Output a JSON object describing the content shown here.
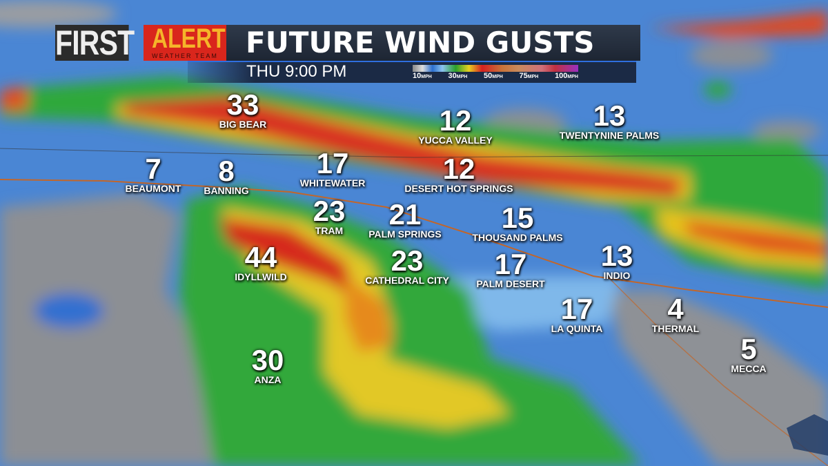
{
  "header": {
    "logo_first": "FIRST",
    "logo_alert": "ALERT",
    "logo_team": "WEATHER TEAM",
    "title": "FUTURE WIND GUSTS",
    "time": "THU 9:00 PM"
  },
  "legend": {
    "unit": "MPH",
    "stops": [
      "10",
      "30",
      "50",
      "75",
      "100"
    ],
    "colors": [
      "#888888",
      "#2b6fd0",
      "#2aa02a",
      "#e8d020",
      "#d62020",
      "#c9733a",
      "#d0707a",
      "#9a30c0"
    ]
  },
  "locations": [
    {
      "name": "BIG BEAR",
      "gust": "33"
    },
    {
      "name": "YUCCA VALLEY",
      "gust": "12"
    },
    {
      "name": "TWENTYNINE PALMS",
      "gust": "13"
    },
    {
      "name": "BEAUMONT",
      "gust": "7"
    },
    {
      "name": "BANNING",
      "gust": "8"
    },
    {
      "name": "WHITEWATER",
      "gust": "17"
    },
    {
      "name": "DESERT HOT SPRINGS",
      "gust": "12"
    },
    {
      "name": "TRAM",
      "gust": "23"
    },
    {
      "name": "PALM SPRINGS",
      "gust": "21"
    },
    {
      "name": "THOUSAND PALMS",
      "gust": "15"
    },
    {
      "name": "IDYLLWILD",
      "gust": "44"
    },
    {
      "name": "CATHEDRAL CITY",
      "gust": "23"
    },
    {
      "name": "PALM DESERT",
      "gust": "17"
    },
    {
      "name": "INDIO",
      "gust": "13"
    },
    {
      "name": "LA QUINTA",
      "gust": "17"
    },
    {
      "name": "THERMAL",
      "gust": "4"
    },
    {
      "name": "ANZA",
      "gust": "30"
    },
    {
      "name": "MECCA",
      "gust": "5"
    }
  ]
}
